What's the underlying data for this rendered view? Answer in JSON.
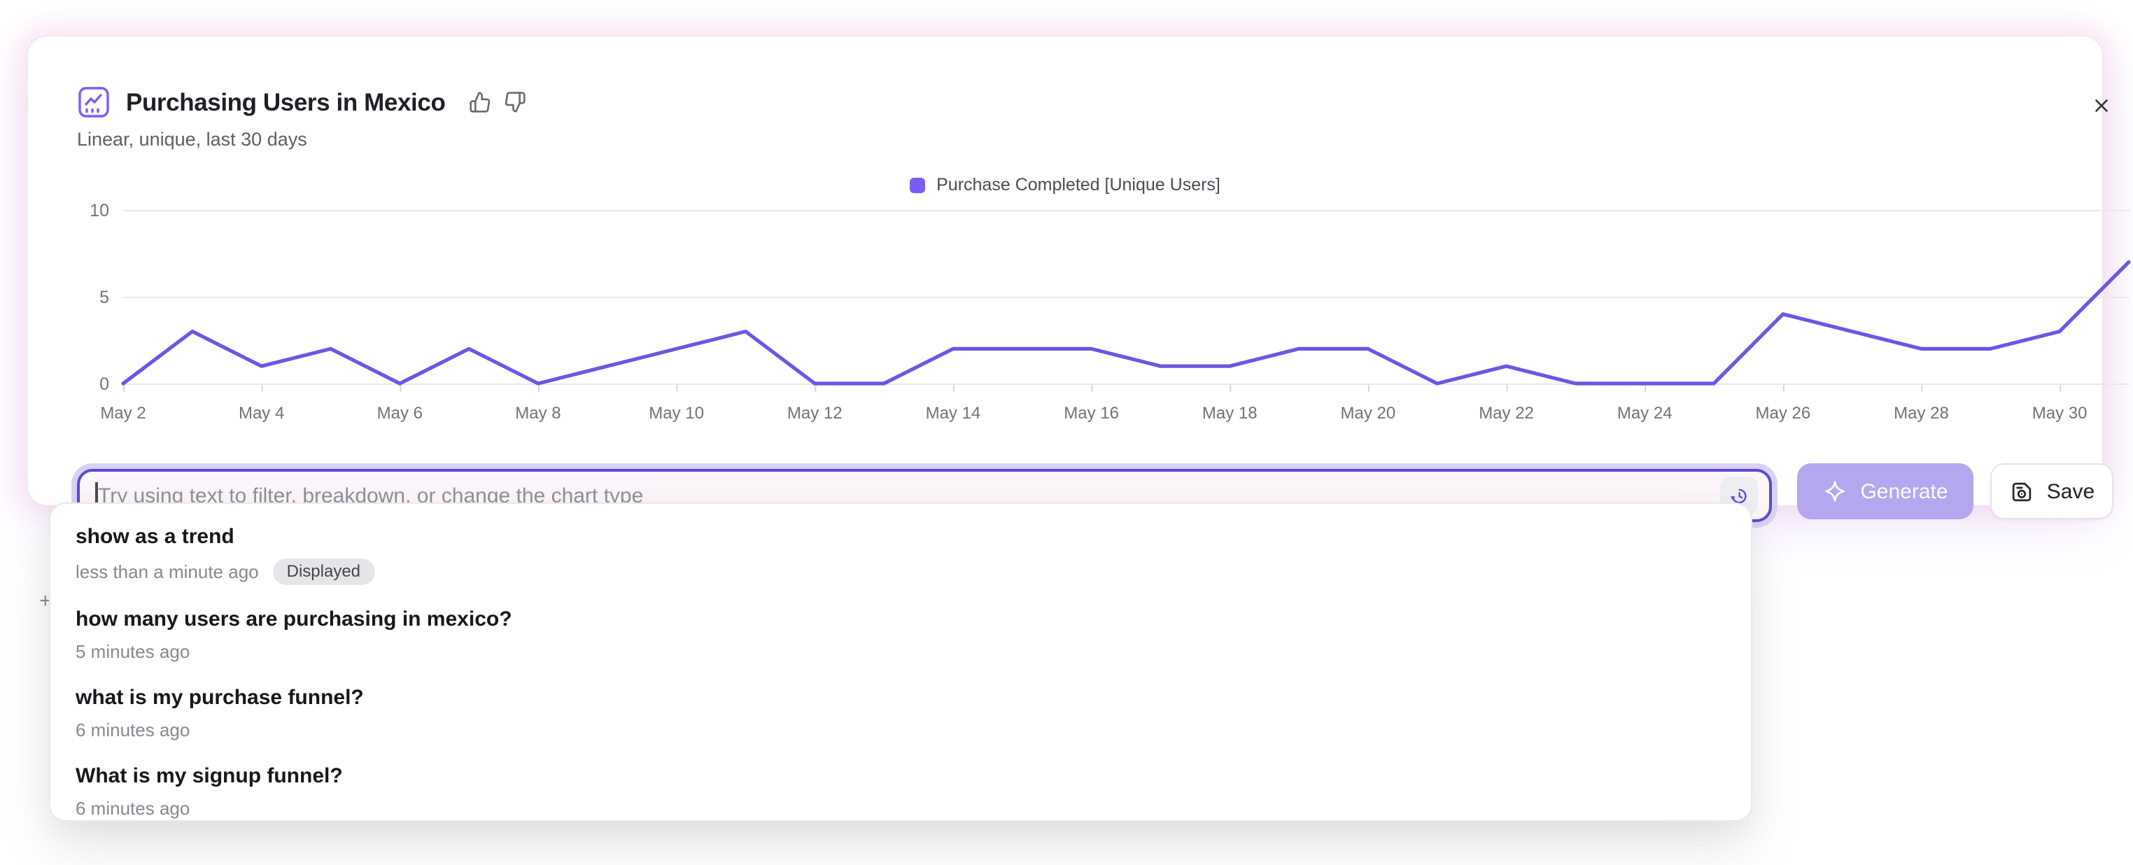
{
  "header": {
    "title": "Purchasing Users in Mexico",
    "subtitle": "Linear, unique, last 30 days"
  },
  "legend": {
    "label": "Purchase Completed [Unique Users]"
  },
  "chart_data": {
    "type": "line",
    "title": "Purchasing Users in Mexico",
    "xlabel": "",
    "ylabel": "",
    "ylim": [
      0,
      10
    ],
    "y_ticks": [
      0,
      5,
      10
    ],
    "grid": "horizontal",
    "legend_position": "top-center",
    "x_tick_labels": [
      "May 2",
      "May 4",
      "May 6",
      "May 8",
      "May 10",
      "May 12",
      "May 14",
      "May 16",
      "May 18",
      "May 20",
      "May 22",
      "May 24",
      "May 26",
      "May 28",
      "May 30"
    ],
    "series": [
      {
        "name": "Purchase Completed [Unique Users]",
        "color": "#6c56e3",
        "swatch_color": "#7c5cf5",
        "x": [
          "May 2",
          "May 3",
          "May 4",
          "May 5",
          "May 6",
          "May 7",
          "May 8",
          "May 9",
          "May 10",
          "May 11",
          "May 12",
          "May 13",
          "May 14",
          "May 15",
          "May 16",
          "May 17",
          "May 18",
          "May 19",
          "May 20",
          "May 21",
          "May 22",
          "May 23",
          "May 24",
          "May 25",
          "May 26",
          "May 27",
          "May 28",
          "May 29",
          "May 30",
          "May 31"
        ],
        "values": [
          0,
          3,
          1,
          2,
          0,
          2,
          0,
          1,
          2,
          3,
          0,
          0,
          2,
          2,
          2,
          1,
          1,
          2,
          2,
          0,
          1,
          0,
          0,
          0,
          4,
          3,
          2,
          2,
          3,
          7
        ]
      }
    ]
  },
  "assistant_bar": {
    "placeholder": "Try using text to filter, breakdown, or change the chart type",
    "generate_label": "Generate",
    "save_label": "Save"
  },
  "history_dropdown": {
    "items": [
      {
        "query": "show as a trend",
        "time": "less than a minute ago",
        "badge": "Displayed"
      },
      {
        "query": "how many users are purchasing in mexico?",
        "time": "5 minutes ago"
      },
      {
        "query": "what is my purchase funnel?",
        "time": "6 minutes ago"
      },
      {
        "query": "What is my signup funnel?",
        "time": "6 minutes ago"
      }
    ]
  },
  "misc": {
    "stray_plus": "+"
  },
  "colors": {
    "accent_purple": "#5b48d8",
    "line": "#6c56e3",
    "legend_swatch": "#7c5cf5",
    "glow_pink": "#f2b0d6"
  }
}
